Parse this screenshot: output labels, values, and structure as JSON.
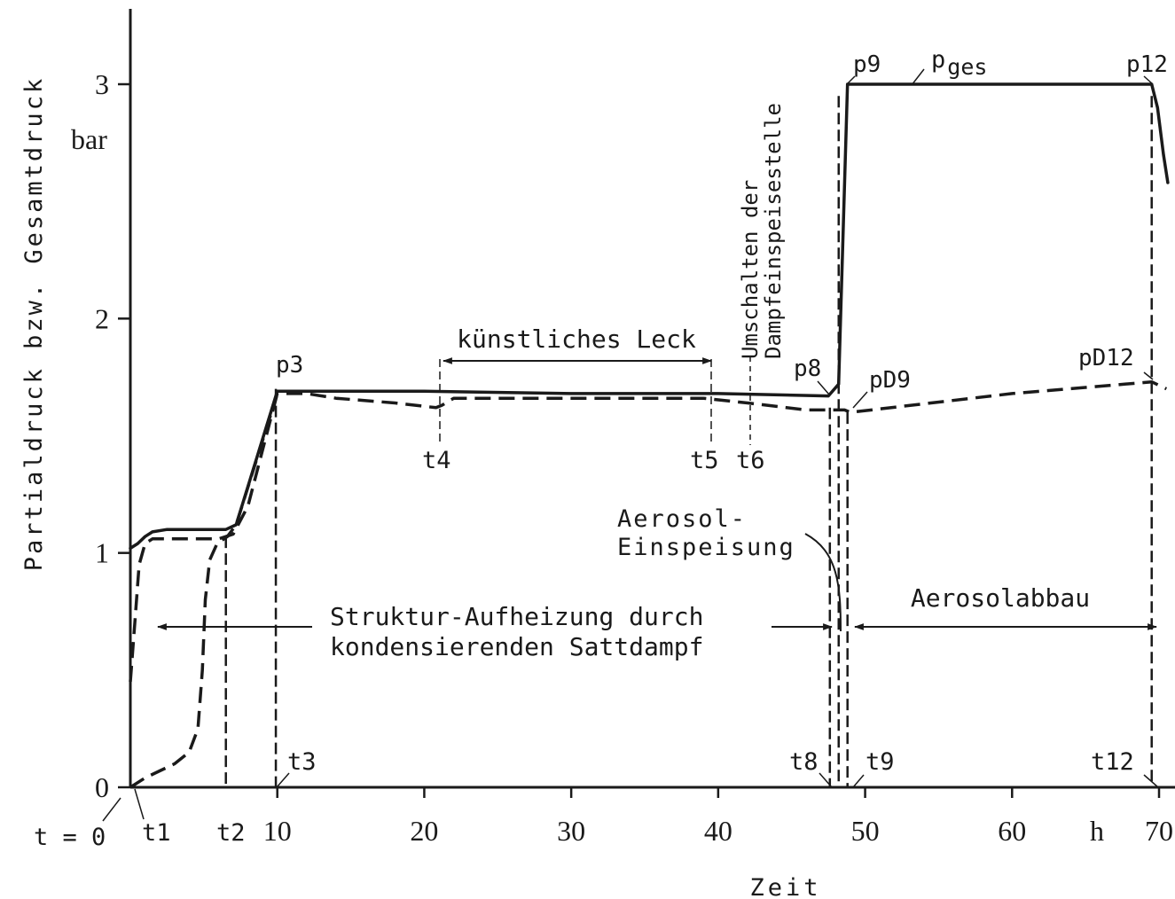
{
  "chart_data": {
    "type": "line",
    "xlabel": "Zeit",
    "ylabel": "Partialdruck bzw. Gesamtdruck",
    "x_unit": "h",
    "y_unit": "bar",
    "x_start_label": "t = 0",
    "xlim": [
      0,
      70
    ],
    "ylim": [
      0,
      3.3
    ],
    "x_ticks": [
      10,
      20,
      30,
      40,
      50,
      60,
      70
    ],
    "y_ticks": [
      0,
      1,
      2,
      3
    ],
    "series": [
      {
        "style": "solid",
        "points": [
          [
            0,
            1.02
          ],
          [
            0.5,
            1.04
          ],
          [
            1,
            1.07
          ],
          [
            1.5,
            1.09
          ],
          [
            2.5,
            1.1
          ],
          [
            4,
            1.1
          ],
          [
            6.5,
            1.1
          ],
          [
            7.2,
            1.12
          ],
          [
            10,
            1.69
          ],
          [
            20,
            1.69
          ],
          [
            30,
            1.68
          ],
          [
            40,
            1.68
          ],
          [
            47.5,
            1.67
          ],
          [
            48.2,
            1.72
          ],
          [
            48.8,
            3.0
          ],
          [
            60,
            3.0
          ],
          [
            69.5,
            3.0
          ],
          [
            69.9,
            2.9
          ],
          [
            70.3,
            2.7
          ],
          [
            70.6,
            2.58
          ]
        ]
      },
      {
        "style": "dashed",
        "points": [
          [
            0,
            0
          ],
          [
            1,
            0.04
          ],
          [
            2,
            0.07
          ],
          [
            3,
            0.1
          ],
          [
            4,
            0.15
          ],
          [
            4.6,
            0.25
          ],
          [
            4.9,
            0.5
          ],
          [
            5.1,
            0.8
          ],
          [
            5.4,
            0.97
          ],
          [
            5.9,
            1.04
          ],
          [
            6.6,
            1.07
          ],
          [
            7.2,
            1.12
          ],
          [
            10,
            1.68
          ],
          [
            12,
            1.68
          ],
          [
            14,
            1.66
          ],
          [
            18,
            1.64
          ],
          [
            20.8,
            1.62
          ],
          [
            21.2,
            1.63
          ],
          [
            22,
            1.66
          ],
          [
            30,
            1.66
          ],
          [
            39,
            1.66
          ],
          [
            42,
            1.64
          ],
          [
            46,
            1.61
          ],
          [
            48,
            1.61
          ],
          [
            48.6,
            1.61
          ],
          [
            49,
            1.6
          ],
          [
            60,
            1.68
          ],
          [
            69.5,
            1.73
          ],
          [
            70.5,
            1.7
          ]
        ]
      },
      {
        "style": "dashed",
        "points": [
          [
            0,
            0.45
          ],
          [
            0.3,
            0.7
          ],
          [
            0.6,
            0.95
          ],
          [
            1,
            1.04
          ],
          [
            1.5,
            1.06
          ],
          [
            4,
            1.06
          ],
          [
            6,
            1.06
          ],
          [
            7,
            1.08
          ],
          [
            8,
            1.2
          ],
          [
            10,
            1.68
          ]
        ]
      }
    ],
    "verticals": [
      {
        "x": 6.5,
        "y_top": 1.07
      },
      {
        "x": 9.9,
        "y_top": 1.7
      },
      {
        "x": 47.6,
        "y_top": 1.62
      },
      {
        "x": 48.2,
        "y_top": 2.95
      },
      {
        "x": 48.8,
        "y_top": 1.6
      },
      {
        "x": 69.5,
        "y_top": 2.95
      }
    ],
    "point_labels": [
      "p3",
      "p8",
      "p9",
      "pD9",
      "p12",
      "pD12"
    ],
    "time_markers": [
      "t1",
      "t2",
      "t3",
      "t4",
      "t5",
      "t6",
      "t8",
      "t9",
      "t12"
    ],
    "total_pressure_label": {
      "base": "p",
      "subscript": "ges"
    },
    "annotations": {
      "leak": "künstliches Leck",
      "switch_line1": "Umschalten der",
      "switch_line2": "Dampfeinspeisestelle",
      "aerosol_line1": "Aerosol-",
      "aerosol_line2": "Einspeisung",
      "heating_line1": "Struktur-Aufheizung durch",
      "heating_line2": "kondensierenden Sattdampf",
      "decay": "Aerosolabbau"
    }
  }
}
